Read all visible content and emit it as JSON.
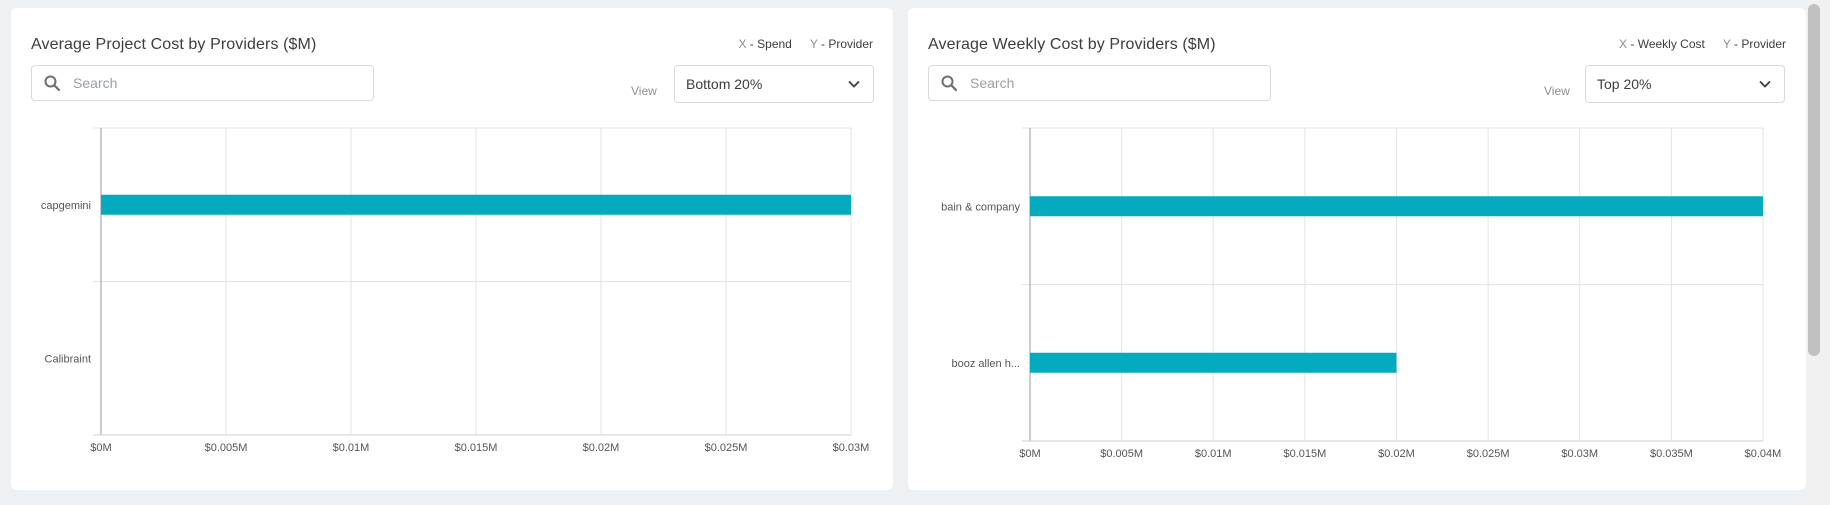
{
  "panels": [
    {
      "title": "Average Project Cost by Providers ($M)",
      "x_key": "X",
      "x_label": "Spend",
      "y_key": "Y",
      "y_label": "Provider",
      "search_placeholder": "Search",
      "view_label": "View",
      "view_value": "Bottom 20%"
    },
    {
      "title": "Average Weekly Cost by Providers ($M)",
      "x_key": "X",
      "x_label": "Weekly Cost",
      "y_key": "Y",
      "y_label": "Provider",
      "search_placeholder": "Search",
      "view_label": "View",
      "view_value": "Top 20%"
    }
  ],
  "chart_data": [
    {
      "type": "bar",
      "orientation": "horizontal",
      "title": "Average Project Cost by Providers ($M)",
      "categories": [
        "capgemini",
        "Calibraint"
      ],
      "values": [
        0.03,
        0
      ],
      "xlim": [
        0,
        0.03
      ],
      "xticks": [
        "$0M",
        "$0.005M",
        "$0.01M",
        "$0.015M",
        "$0.02M",
        "$0.025M",
        "$0.03M"
      ],
      "grid": true,
      "bar_color": "#04aabd"
    },
    {
      "type": "bar",
      "orientation": "horizontal",
      "title": "Average Weekly Cost by Providers ($M)",
      "categories": [
        "bain & company",
        "booz allen h..."
      ],
      "values": [
        0.04,
        0.02
      ],
      "xlim": [
        0,
        0.04
      ],
      "xticks": [
        "$0M",
        "$0.005M",
        "$0.01M",
        "$0.015M",
        "$0.02M",
        "$0.025M",
        "$0.03M",
        "$0.035M",
        "$0.04M"
      ],
      "grid": true,
      "bar_color": "#04aabd"
    }
  ]
}
